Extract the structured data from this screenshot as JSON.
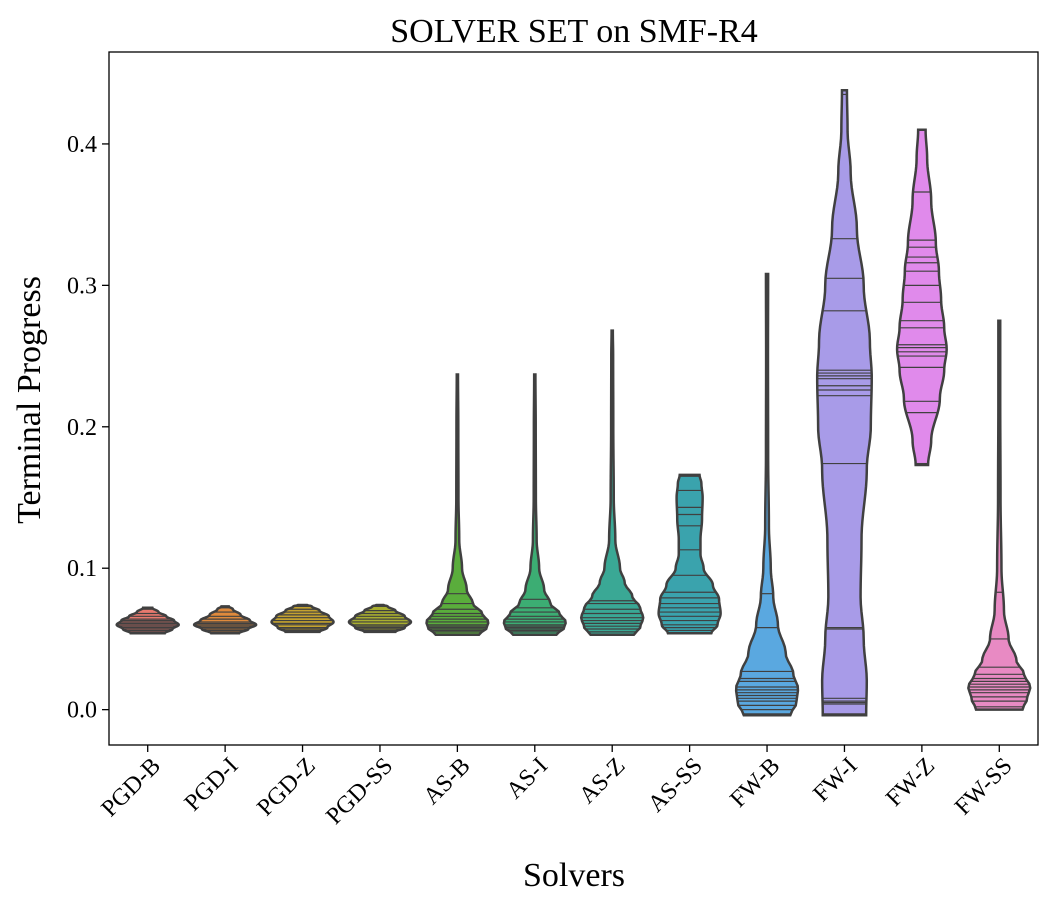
{
  "chart_data": {
    "type": "violin",
    "title": "SOLVER SET on SMF-R4",
    "xlabel": "Solvers",
    "ylabel": "Terminal Progress",
    "ylim": [
      -0.025,
      0.465
    ],
    "yticks": [
      0.0,
      0.1,
      0.2,
      0.3,
      0.4
    ],
    "ytick_labels": [
      "0.0",
      "0.1",
      "0.2",
      "0.3",
      "0.4"
    ],
    "grid": false,
    "inner": "stick",
    "categories": [
      "PGD-B",
      "PGD-I",
      "PGD-Z",
      "PGD-SS",
      "AS-B",
      "AS-I",
      "AS-Z",
      "AS-SS",
      "FW-B",
      "FW-I",
      "FW-Z",
      "FW-SS"
    ],
    "series": [
      {
        "category": "PGD-B",
        "color": "#e8796e",
        "values": [
          0.055,
          0.056,
          0.057,
          0.058,
          0.059,
          0.06,
          0.061,
          0.062,
          0.063,
          0.064,
          0.066,
          0.068,
          0.071
        ],
        "profile": [
          [
            0.054,
            0.55
          ],
          [
            0.057,
            0.8
          ],
          [
            0.06,
            1.0
          ],
          [
            0.063,
            0.85
          ],
          [
            0.066,
            0.6
          ],
          [
            0.069,
            0.35
          ],
          [
            0.072,
            0.15
          ]
        ]
      },
      {
        "category": "PGD-I",
        "color": "#e08a3c",
        "values": [
          0.055,
          0.056,
          0.057,
          0.058,
          0.059,
          0.06,
          0.061,
          0.062,
          0.064,
          0.066,
          0.069,
          0.072
        ],
        "profile": [
          [
            0.054,
            0.45
          ],
          [
            0.057,
            0.75
          ],
          [
            0.06,
            1.0
          ],
          [
            0.063,
            0.8
          ],
          [
            0.067,
            0.5
          ],
          [
            0.071,
            0.25
          ],
          [
            0.073,
            0.12
          ]
        ]
      },
      {
        "category": "PGD-Z",
        "color": "#c4a22f",
        "values": [
          0.056,
          0.057,
          0.058,
          0.06,
          0.061,
          0.063,
          0.065,
          0.067,
          0.069,
          0.071,
          0.073
        ],
        "profile": [
          [
            0.055,
            0.55
          ],
          [
            0.058,
            0.8
          ],
          [
            0.062,
            1.0
          ],
          [
            0.066,
            0.85
          ],
          [
            0.07,
            0.55
          ],
          [
            0.073,
            0.3
          ],
          [
            0.074,
            0.15
          ]
        ]
      },
      {
        "category": "PGD-SS",
        "color": "#a8ae2f",
        "values": [
          0.056,
          0.057,
          0.058,
          0.059,
          0.06,
          0.062,
          0.064,
          0.066,
          0.068,
          0.07,
          0.073
        ],
        "profile": [
          [
            0.055,
            0.5
          ],
          [
            0.058,
            0.8
          ],
          [
            0.062,
            1.0
          ],
          [
            0.066,
            0.8
          ],
          [
            0.07,
            0.5
          ],
          [
            0.073,
            0.25
          ],
          [
            0.074,
            0.12
          ]
        ]
      },
      {
        "category": "AS-B",
        "color": "#5aad3c",
        "values": [
          0.055,
          0.056,
          0.057,
          0.058,
          0.059,
          0.06,
          0.062,
          0.064,
          0.066,
          0.068,
          0.071,
          0.075,
          0.082,
          0.237
        ],
        "profile": [
          [
            0.053,
            0.7
          ],
          [
            0.058,
            0.95
          ],
          [
            0.062,
            1.0
          ],
          [
            0.068,
            0.8
          ],
          [
            0.075,
            0.5
          ],
          [
            0.085,
            0.3
          ],
          [
            0.1,
            0.15
          ],
          [
            0.12,
            0.06
          ],
          [
            0.15,
            0.035
          ],
          [
            0.2,
            0.03
          ],
          [
            0.237,
            0.02
          ]
        ]
      },
      {
        "category": "AS-I",
        "color": "#3cad73",
        "values": [
          0.055,
          0.056,
          0.057,
          0.058,
          0.059,
          0.06,
          0.062,
          0.064,
          0.066,
          0.069,
          0.072,
          0.078,
          0.237
        ],
        "profile": [
          [
            0.053,
            0.7
          ],
          [
            0.058,
            0.95
          ],
          [
            0.062,
            1.0
          ],
          [
            0.068,
            0.8
          ],
          [
            0.075,
            0.5
          ],
          [
            0.085,
            0.3
          ],
          [
            0.1,
            0.14
          ],
          [
            0.12,
            0.06
          ],
          [
            0.15,
            0.035
          ],
          [
            0.2,
            0.03
          ],
          [
            0.237,
            0.02
          ]
        ]
      },
      {
        "category": "AS-Z",
        "color": "#3aa895",
        "values": [
          0.055,
          0.057,
          0.059,
          0.061,
          0.063,
          0.065,
          0.068,
          0.071,
          0.075,
          0.077,
          0.268
        ],
        "profile": [
          [
            0.053,
            0.7
          ],
          [
            0.058,
            0.9
          ],
          [
            0.065,
            1.0
          ],
          [
            0.072,
            0.9
          ],
          [
            0.08,
            0.65
          ],
          [
            0.09,
            0.4
          ],
          [
            0.1,
            0.25
          ],
          [
            0.12,
            0.1
          ],
          [
            0.15,
            0.05
          ],
          [
            0.2,
            0.035
          ],
          [
            0.25,
            0.03
          ],
          [
            0.268,
            0.02
          ]
        ]
      },
      {
        "category": "AS-SS",
        "color": "#3aa3ad",
        "values": [
          0.056,
          0.058,
          0.06,
          0.063,
          0.066,
          0.069,
          0.072,
          0.075,
          0.079,
          0.083,
          0.095,
          0.113,
          0.13,
          0.138,
          0.143,
          0.155,
          0.165
        ],
        "profile": [
          [
            0.054,
            0.7
          ],
          [
            0.06,
            0.9
          ],
          [
            0.068,
            1.0
          ],
          [
            0.078,
            0.95
          ],
          [
            0.088,
            0.75
          ],
          [
            0.1,
            0.45
          ],
          [
            0.11,
            0.35
          ],
          [
            0.12,
            0.35
          ],
          [
            0.135,
            0.4
          ],
          [
            0.15,
            0.42
          ],
          [
            0.16,
            0.38
          ],
          [
            0.166,
            0.32
          ]
        ]
      },
      {
        "category": "FW-B",
        "color": "#5aa8e0",
        "values": [
          -0.003,
          0.0,
          0.003,
          0.006,
          0.008,
          0.01,
          0.012,
          0.014,
          0.016,
          0.02,
          0.022,
          0.027,
          0.058,
          0.082,
          0.29,
          0.308
        ],
        "profile": [
          [
            -0.004,
            0.75
          ],
          [
            0.005,
            0.95
          ],
          [
            0.015,
            1.0
          ],
          [
            0.025,
            0.85
          ],
          [
            0.04,
            0.6
          ],
          [
            0.06,
            0.35
          ],
          [
            0.08,
            0.2
          ],
          [
            0.1,
            0.12
          ],
          [
            0.13,
            0.06
          ],
          [
            0.18,
            0.035
          ],
          [
            0.25,
            0.03
          ],
          [
            0.308,
            0.035
          ]
        ]
      },
      {
        "category": "FW-I",
        "color": "#a89be8",
        "values": [
          -0.003,
          0.004,
          0.005,
          0.006,
          0.008,
          0.057,
          0.058,
          0.174,
          0.222,
          0.226,
          0.229,
          0.234,
          0.236,
          0.238,
          0.24,
          0.282,
          0.305,
          0.333,
          0.435
        ],
        "profile": [
          [
            -0.004,
            0.7
          ],
          [
            0.02,
            0.72
          ],
          [
            0.05,
            0.62
          ],
          [
            0.08,
            0.52
          ],
          [
            0.12,
            0.55
          ],
          [
            0.17,
            0.72
          ],
          [
            0.2,
            0.85
          ],
          [
            0.235,
            0.88
          ],
          [
            0.26,
            0.82
          ],
          [
            0.3,
            0.62
          ],
          [
            0.34,
            0.4
          ],
          [
            0.38,
            0.2
          ],
          [
            0.41,
            0.1
          ],
          [
            0.438,
            0.08
          ]
        ]
      },
      {
        "category": "FW-Z",
        "color": "#e08aeb",
        "values": [
          0.174,
          0.21,
          0.218,
          0.242,
          0.25,
          0.253,
          0.256,
          0.258,
          0.27,
          0.275,
          0.288,
          0.3,
          0.31,
          0.316,
          0.32,
          0.327,
          0.332,
          0.366,
          0.41
        ],
        "profile": [
          [
            0.173,
            0.2
          ],
          [
            0.19,
            0.3
          ],
          [
            0.22,
            0.58
          ],
          [
            0.24,
            0.72
          ],
          [
            0.255,
            0.8
          ],
          [
            0.27,
            0.72
          ],
          [
            0.29,
            0.62
          ],
          [
            0.31,
            0.55
          ],
          [
            0.33,
            0.45
          ],
          [
            0.36,
            0.3
          ],
          [
            0.39,
            0.17
          ],
          [
            0.41,
            0.12
          ]
        ]
      },
      {
        "category": "FW-SS",
        "color": "#e88ac3",
        "values": [
          0.002,
          0.006,
          0.009,
          0.012,
          0.014,
          0.016,
          0.018,
          0.02,
          0.022,
          0.025,
          0.03,
          0.05,
          0.083,
          0.275
        ],
        "profile": [
          [
            0.0,
            0.75
          ],
          [
            0.008,
            0.9
          ],
          [
            0.016,
            1.0
          ],
          [
            0.025,
            0.8
          ],
          [
            0.035,
            0.55
          ],
          [
            0.05,
            0.3
          ],
          [
            0.07,
            0.15
          ],
          [
            0.1,
            0.07
          ],
          [
            0.15,
            0.04
          ],
          [
            0.22,
            0.03
          ],
          [
            0.275,
            0.03
          ]
        ]
      }
    ]
  }
}
